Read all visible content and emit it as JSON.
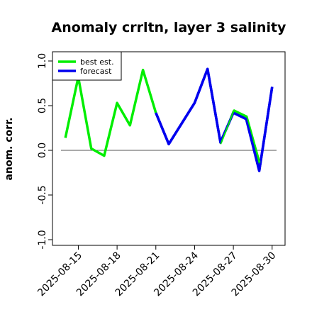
{
  "chart_data": {
    "type": "line",
    "title": "Anomaly crrltn, layer 3 salinity",
    "ylabel": "anom. corr.",
    "xlabel": "",
    "ylim": [
      -1.0,
      1.0
    ],
    "yticks": [
      -1.0,
      -0.5,
      0.0,
      0.5,
      1.0
    ],
    "ytick_labels": [
      "-1.0",
      "-0.5",
      "0.0",
      "0.5",
      "1.0"
    ],
    "xlim": [
      "2025-08-13",
      "2025-08-31"
    ],
    "xticks": [
      {
        "date": "2025-08-15",
        "label": "2025-08-15",
        "color": "#000000"
      },
      {
        "date": "2025-08-18",
        "label": "2025-08-18",
        "color": "#000000"
      },
      {
        "date": "2025-08-21",
        "label": "2025-08-21",
        "color": "#228B22"
      },
      {
        "date": "2025-08-24",
        "label": "2025-08-24",
        "color": "#000000"
      },
      {
        "date": "2025-08-27",
        "label": "2025-08-27",
        "color": "#000000"
      },
      {
        "date": "2025-08-30",
        "label": "2025-08-30",
        "color": "#000000"
      }
    ],
    "reference_line": 0.0,
    "legend": "top-left",
    "grid": false,
    "series": [
      {
        "name": "best est.",
        "color": "#00ee00",
        "x": [
          "2025-08-14",
          "2025-08-15",
          "2025-08-16",
          "2025-08-17",
          "2025-08-18",
          "2025-08-19",
          "2025-08-20",
          "2025-08-21"
        ],
        "y": [
          0.14,
          0.82,
          0.02,
          -0.06,
          0.53,
          0.28,
          0.9,
          0.42
        ]
      },
      {
        "name": "forecast",
        "color": "#0000ee",
        "x": [
          "2025-08-21",
          "2025-08-22",
          "2025-08-23",
          "2025-08-24",
          "2025-08-25",
          "2025-08-26",
          "2025-08-27",
          "2025-08-28",
          "2025-08-29",
          "2025-08-30"
        ],
        "y": [
          0.42,
          0.07,
          0.3,
          0.53,
          0.91,
          0.09,
          0.42,
          0.35,
          -0.23,
          0.71
        ]
      },
      {
        "name": "",
        "color": "#00ee00",
        "x": [
          "2025-08-26",
          "2025-08-27",
          "2025-08-28",
          "2025-08-29"
        ],
        "y": [
          0.07,
          0.44,
          0.37,
          -0.15
        ]
      }
    ]
  }
}
